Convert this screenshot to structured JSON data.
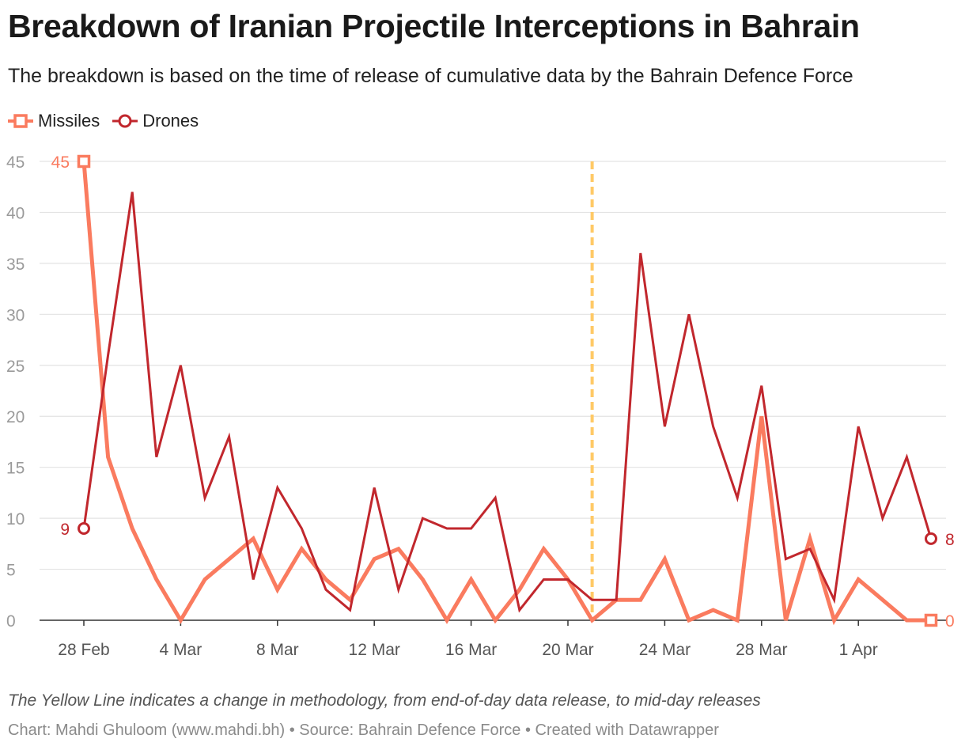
{
  "title": "Breakdown of Iranian Projectile Interceptions in Bahrain",
  "subtitle": "The breakdown is based on the time of release of cumulative data by the Bahrain Defence Force",
  "note": "The Yellow Line indicates a change in methodology, from end-of-day data release, to mid-day releases",
  "credit": "Chart: Mahdi Ghuloom (www.mahdi.bh) • Source: Bahrain Defence Force • Created with Datawrapper",
  "colors": {
    "missiles": "#FA7B5F",
    "drones": "#C1272D",
    "methodology_line": "#FFC966",
    "grid": "#e3e3e3",
    "axis": "#333333"
  },
  "chart_data": {
    "type": "line",
    "x": [
      "28 Feb",
      "1 Mar",
      "2 Mar",
      "3 Mar",
      "4 Mar",
      "5 Mar",
      "6 Mar",
      "7 Mar",
      "8 Mar",
      "9 Mar",
      "10 Mar",
      "11 Mar",
      "12 Mar",
      "13 Mar",
      "14 Mar",
      "15 Mar",
      "16 Mar",
      "17 Mar",
      "18 Mar",
      "19 Mar",
      "20 Mar",
      "21 Mar",
      "22 Mar",
      "23 Mar",
      "24 Mar",
      "25 Mar",
      "26 Mar",
      "27 Mar",
      "28 Mar",
      "29 Mar",
      "30 Mar",
      "31 Mar",
      "1 Apr",
      "2 Apr",
      "3 Apr",
      "4 Apr"
    ],
    "x_ticks": [
      "28 Feb",
      "4 Mar",
      "8 Mar",
      "12 Mar",
      "16 Mar",
      "20 Mar",
      "24 Mar",
      "28 Mar",
      "1 Apr"
    ],
    "y_ticks": [
      0,
      5,
      10,
      15,
      20,
      25,
      30,
      35,
      40,
      45
    ],
    "ylim": [
      0,
      45
    ],
    "series": [
      {
        "name": "Missiles",
        "values": [
          45,
          16,
          9,
          4,
          0,
          4,
          6,
          8,
          3,
          7,
          4,
          2,
          6,
          7,
          4,
          0,
          4,
          0,
          3,
          7,
          4,
          0,
          2,
          2,
          6,
          0,
          1,
          0,
          20,
          0,
          8,
          0,
          4,
          2,
          0,
          0
        ]
      },
      {
        "name": "Drones",
        "values": [
          9,
          26,
          42,
          16,
          25,
          12,
          18,
          4,
          13,
          9,
          3,
          1,
          13,
          3,
          10,
          9,
          9,
          12,
          1,
          4,
          4,
          2,
          2,
          36,
          19,
          30,
          19,
          12,
          23,
          6,
          7,
          2,
          19,
          10,
          16,
          8
        ]
      }
    ],
    "methodology_change_x": "21 Mar",
    "start_labels": [
      "45",
      "9"
    ],
    "end_labels": [
      "0",
      "8"
    ]
  }
}
